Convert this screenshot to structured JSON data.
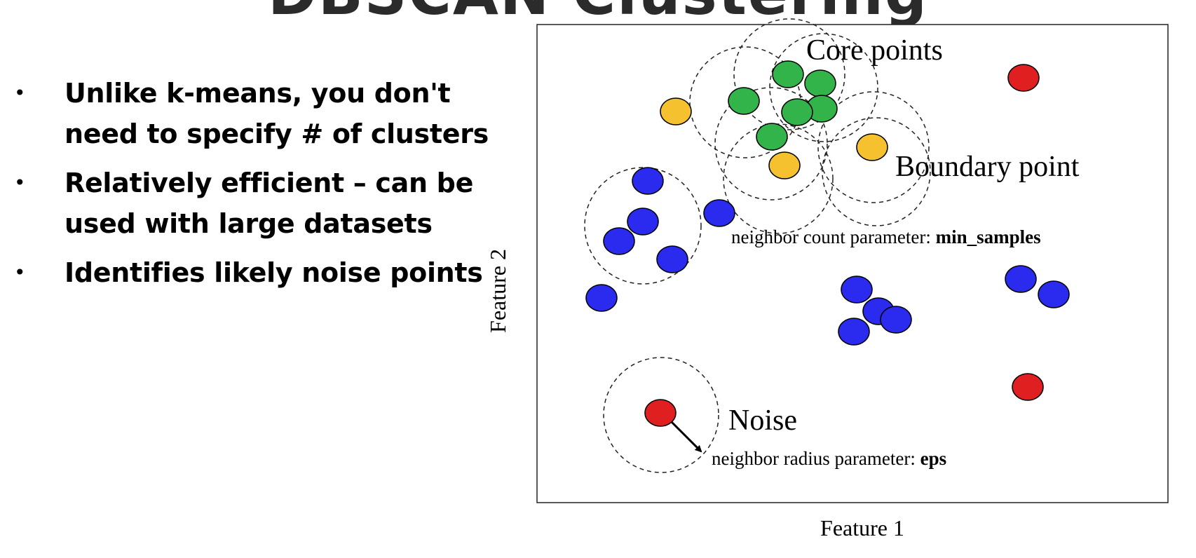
{
  "slide": {
    "title": "DBSCAN Clustering",
    "bullets": [
      "Unlike k-means, you don't need to specify # of clusters",
      "Relatively efficient – can be used with large datasets",
      "Identifies likely noise points"
    ]
  },
  "diagram": {
    "labels": {
      "core_points": "Core points",
      "boundary_point": "Boundary point",
      "noise": "Noise",
      "min_samples_prefix": "neighbor count parameter: ",
      "min_samples_name": "min_samples",
      "eps_prefix": "neighbor radius parameter: ",
      "eps_name": "eps",
      "x_axis": "Feature 1",
      "y_axis": "Feature 2"
    },
    "colors": {
      "core": "#33b44a",
      "boundary": "#f5c12e",
      "noise": "#e02020",
      "cluster": "#2b2bf0",
      "outline": "#000000"
    },
    "point_kinds": [
      "core",
      "boundary",
      "noise",
      "cluster"
    ]
  }
}
